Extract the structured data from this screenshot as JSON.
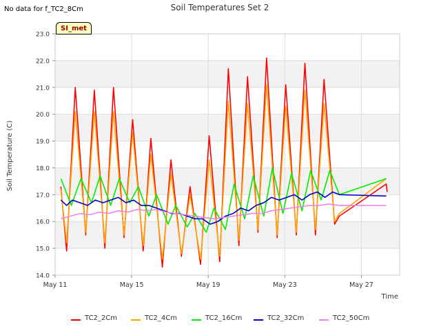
{
  "header": {
    "no_data_text": "No data for f_TC2_8Cm",
    "site_badge": "SI_met"
  },
  "chart_data": {
    "type": "line",
    "title": "Soil Temperatures Set 2",
    "xlabel": "Time",
    "ylabel": "Soil Temperature (C)",
    "x_unit": "days in May",
    "xlim": [
      11,
      29
    ],
    "ylim": [
      14.0,
      23.0
    ],
    "x_ticks": [
      11,
      15,
      19,
      23,
      27
    ],
    "x_tick_labels": [
      "May 11",
      "May 15",
      "May 19",
      "May 23",
      "May 27"
    ],
    "y_ticks": [
      14.0,
      15.0,
      16.0,
      17.0,
      18.0,
      19.0,
      20.0,
      21.0,
      22.0,
      23.0
    ],
    "y_tick_labels": [
      "14.0",
      "15.0",
      "16.0",
      "17.0",
      "18.0",
      "19.0",
      "20.0",
      "21.0",
      "22.0",
      "23.0"
    ],
    "grid": true,
    "background_bands": true,
    "legend_position": "bottom",
    "series": [
      {
        "name": "TC2_2Cm",
        "color": "#ff0000",
        "x": [
          11.3,
          11.6,
          12.05,
          12.6,
          13.05,
          13.6,
          14.05,
          14.6,
          15.05,
          15.6,
          16.0,
          16.6,
          17.05,
          17.6,
          18.05,
          18.6,
          19.05,
          19.6,
          20.05,
          20.6,
          21.05,
          21.6,
          22.05,
          22.6,
          23.05,
          23.6,
          24.05,
          24.6,
          25.05,
          25.6,
          25.85,
          28.3,
          28.35
        ],
        "y": [
          17.3,
          14.9,
          21.0,
          15.5,
          20.9,
          15.0,
          21.0,
          15.4,
          19.8,
          14.9,
          19.1,
          14.3,
          18.3,
          14.7,
          17.3,
          14.4,
          19.2,
          14.5,
          21.7,
          15.1,
          21.4,
          15.6,
          22.1,
          15.4,
          21.1,
          15.5,
          21.9,
          15.5,
          21.3,
          15.9,
          16.2,
          17.4,
          17.1
        ]
      },
      {
        "name": "TC2_4Cm",
        "color": "#ffa500",
        "x": [
          11.3,
          11.6,
          12.05,
          12.6,
          13.05,
          13.6,
          14.05,
          14.6,
          15.05,
          15.6,
          16.0,
          16.6,
          17.05,
          17.6,
          18.05,
          18.6,
          19.05,
          19.6,
          20.05,
          20.6,
          21.05,
          21.6,
          22.05,
          22.6,
          23.05,
          23.6,
          24.05,
          24.6,
          25.05,
          25.6,
          25.85,
          28.3
        ],
        "y": [
          17.2,
          15.2,
          20.1,
          15.6,
          20.1,
          15.2,
          20.1,
          15.5,
          19.3,
          15.1,
          18.5,
          14.6,
          17.8,
          14.8,
          17.0,
          14.6,
          18.3,
          14.7,
          20.5,
          15.3,
          20.4,
          15.7,
          21.1,
          15.5,
          20.3,
          15.6,
          20.9,
          15.7,
          20.4,
          16.0,
          16.3,
          17.6
        ]
      },
      {
        "name": "TC2_16Cm",
        "color": "#00ee00",
        "x": [
          11.3,
          11.85,
          12.35,
          12.9,
          13.35,
          13.9,
          14.35,
          14.9,
          15.35,
          15.9,
          16.3,
          16.9,
          17.3,
          17.9,
          18.3,
          18.9,
          19.3,
          19.9,
          20.35,
          20.9,
          21.35,
          21.9,
          22.35,
          22.9,
          23.35,
          23.9,
          24.35,
          24.9,
          25.35,
          25.85,
          28.3
        ],
        "y": [
          17.6,
          16.6,
          17.6,
          16.7,
          17.7,
          16.6,
          17.6,
          16.7,
          17.3,
          16.2,
          17.0,
          15.9,
          16.6,
          15.8,
          16.3,
          15.6,
          16.5,
          15.7,
          17.4,
          16.1,
          17.7,
          16.2,
          18.0,
          16.3,
          17.8,
          16.4,
          17.9,
          16.8,
          17.9,
          17.0,
          17.6
        ]
      },
      {
        "name": "TC2_32Cm",
        "color": "#0000cc",
        "x": [
          11.3,
          11.6,
          11.9,
          12.3,
          12.7,
          13.1,
          13.5,
          13.9,
          14.3,
          14.7,
          15.1,
          15.5,
          15.9,
          16.3,
          16.7,
          17.1,
          17.5,
          17.9,
          18.3,
          18.7,
          19.1,
          19.5,
          19.9,
          20.3,
          20.7,
          21.1,
          21.5,
          21.9,
          22.3,
          22.7,
          23.1,
          23.5,
          23.9,
          24.3,
          24.7,
          25.1,
          25.5,
          25.85,
          28.3
        ],
        "y": [
          16.8,
          16.6,
          16.8,
          16.7,
          16.6,
          16.8,
          16.7,
          16.8,
          16.9,
          16.7,
          16.8,
          16.6,
          16.6,
          16.5,
          16.4,
          16.3,
          16.3,
          16.2,
          16.1,
          16.1,
          15.9,
          16.0,
          16.2,
          16.3,
          16.5,
          16.4,
          16.6,
          16.7,
          16.9,
          16.8,
          16.9,
          17.0,
          16.8,
          17.0,
          17.1,
          16.9,
          17.1,
          17.0,
          16.95
        ]
      },
      {
        "name": "TC2_50Cm",
        "color": "#ee82ee",
        "x": [
          11.3,
          11.8,
          12.3,
          12.8,
          13.3,
          13.8,
          14.3,
          14.8,
          15.3,
          15.8,
          16.3,
          16.8,
          17.3,
          17.8,
          18.3,
          18.8,
          19.3,
          19.8,
          20.3,
          20.8,
          21.3,
          21.8,
          22.3,
          22.8,
          23.3,
          23.8,
          24.3,
          24.8,
          25.3,
          25.85,
          28.3
        ],
        "y": [
          16.1,
          16.2,
          16.3,
          16.25,
          16.35,
          16.3,
          16.4,
          16.35,
          16.45,
          16.4,
          16.45,
          16.35,
          16.3,
          16.25,
          16.2,
          16.15,
          16.1,
          16.15,
          16.2,
          16.25,
          16.3,
          16.3,
          16.4,
          16.45,
          16.5,
          16.55,
          16.6,
          16.6,
          16.65,
          16.6,
          16.6
        ]
      }
    ]
  }
}
